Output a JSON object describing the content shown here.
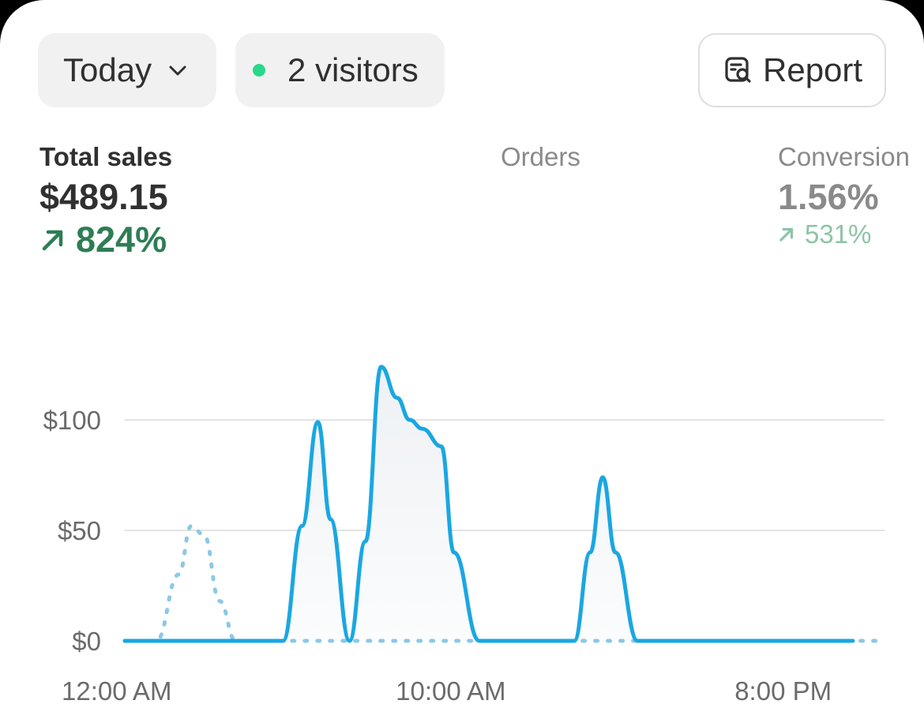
{
  "header": {
    "period": {
      "label": "Today",
      "icon": "chevron-down-icon"
    },
    "visitors": {
      "label": "2 visitors",
      "status_color": "#29d88a"
    },
    "report": {
      "label": "Report",
      "icon": "report-search-icon"
    }
  },
  "metrics": {
    "total_sales": {
      "label": "Total sales",
      "value": "$489.15",
      "change": "824%"
    },
    "orders": {
      "label": "Orders"
    },
    "conversion": {
      "label": "Conversion",
      "value": "1.56%",
      "change": "531%"
    }
  },
  "colors": {
    "primary_line": "#1aa7e2",
    "comparison_line": "#8cc8e6",
    "positive": "#2e7d55",
    "grid": "#e3e3e3"
  },
  "chart_data": {
    "type": "line",
    "y_ticks": [
      "$100",
      "$50",
      "$0"
    ],
    "x_ticks": [
      "12:00 AM",
      "10:00 AM",
      "8:00 PM"
    ],
    "ylim": [
      0,
      150
    ],
    "x_range": [
      0,
      24
    ],
    "grid": true,
    "series": [
      {
        "style": "solid",
        "x": [
          0,
          5,
          5.6,
          6.1,
          6.5,
          7.1,
          7.6,
          8.1,
          8.6,
          9.0,
          9.4,
          10.0,
          10.4,
          11.2,
          13.4,
          14.2,
          14.7,
          15.1,
          15.5,
          16.2,
          23.0
        ],
        "values": [
          0,
          0,
          52,
          99,
          55,
          0,
          45,
          124,
          110,
          100,
          96,
          88,
          40,
          0,
          0,
          0,
          40,
          74,
          40,
          0,
          0
        ]
      },
      {
        "style": "dotted",
        "x": [
          0,
          1.0,
          1.7,
          2.1,
          2.5,
          3.0,
          3.5,
          23.9
        ],
        "values": [
          0,
          0,
          30,
          52,
          48,
          18,
          0,
          0
        ]
      }
    ]
  }
}
